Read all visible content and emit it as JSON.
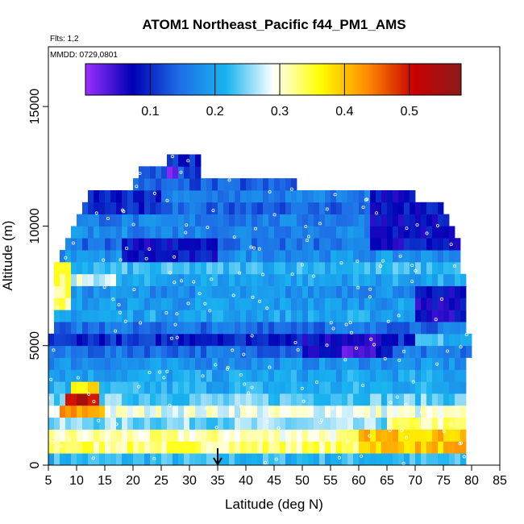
{
  "chart_data": {
    "type": "heatmap",
    "title": "ATOM1 Northeast_Pacific f44_PM1_AMS",
    "flights_note": "Flts: 1,2",
    "dates_note": "MMDD: 0729,0801",
    "xlabel": "Latitude (deg N)",
    "ylabel": "Altitude (m)",
    "xlim": [
      5,
      85
    ],
    "ylim": [
      0,
      17500
    ],
    "x_ticks": [
      "5",
      "10",
      "15",
      "20",
      "25",
      "30",
      "35",
      "40",
      "45",
      "50",
      "55",
      "60",
      "65",
      "70",
      "75",
      "80",
      "85"
    ],
    "y_ticks": [
      "0",
      "5000",
      "10000",
      "15000"
    ],
    "colorbar": {
      "range": [
        0,
        0.58
      ],
      "ticks": [
        "0.1",
        "0.2",
        "0.3",
        "0.4",
        "0.5"
      ],
      "tick_values": [
        0.1,
        0.2,
        0.3,
        0.4,
        0.5
      ],
      "colors": [
        "#9b30ff",
        "#0000b4",
        "#1e6ee6",
        "#19b4f0",
        "#ffffff",
        "#ffff00",
        "#ff8c00",
        "#c80000",
        "#8b1a1a"
      ]
    },
    "marker_latitude": 35,
    "grid": false,
    "legend": "none",
    "profile_bands": [
      {
        "alt": [
          0,
          500
        ],
        "lat": [
          5,
          79
        ],
        "value": 0.22
      },
      {
        "alt": [
          500,
          1000
        ],
        "lat": [
          5,
          79
        ],
        "value": 0.33
      },
      {
        "alt": [
          1000,
          1500
        ],
        "lat": [
          5,
          79
        ],
        "value": 0.31
      },
      {
        "alt": [
          1500,
          2000
        ],
        "lat": [
          5,
          79
        ],
        "value": 0.25
      },
      {
        "alt": [
          2000,
          2500
        ],
        "lat": [
          5,
          79
        ],
        "value": 0.29
      },
      {
        "alt": [
          2500,
          3000
        ],
        "lat": [
          5,
          79
        ],
        "value": 0.24
      },
      {
        "alt": [
          3000,
          3500
        ],
        "lat": [
          5,
          79
        ],
        "value": 0.21
      },
      {
        "alt": [
          3500,
          4000
        ],
        "lat": [
          5,
          79
        ],
        "value": 0.2
      },
      {
        "alt": [
          4000,
          4500
        ],
        "lat": [
          5,
          79
        ],
        "value": 0.18
      },
      {
        "alt": [
          4500,
          5000
        ],
        "lat": [
          5,
          80
        ],
        "value": 0.15
      },
      {
        "alt": [
          5000,
          5500
        ],
        "lat": [
          5,
          80
        ],
        "value": 0.1
      },
      {
        "alt": [
          5500,
          6000
        ],
        "lat": [
          6,
          79
        ],
        "value": 0.15
      },
      {
        "alt": [
          6000,
          6500
        ],
        "lat": [
          6,
          79
        ],
        "value": 0.2
      },
      {
        "alt": [
          6500,
          7000
        ],
        "lat": [
          6,
          79
        ],
        "value": 0.19
      },
      {
        "alt": [
          7000,
          7500
        ],
        "lat": [
          6,
          79
        ],
        "value": 0.18
      },
      {
        "alt": [
          7500,
          8000
        ],
        "lat": [
          6,
          79
        ],
        "value": 0.2
      },
      {
        "alt": [
          8000,
          8500
        ],
        "lat": [
          6,
          78
        ],
        "value": 0.22
      },
      {
        "alt": [
          8500,
          9000
        ],
        "lat": [
          7,
          78
        ],
        "value": 0.18
      },
      {
        "alt": [
          9000,
          9500
        ],
        "lat": [
          8,
          78
        ],
        "value": 0.15
      },
      {
        "alt": [
          9500,
          10000
        ],
        "lat": [
          9,
          77
        ],
        "value": 0.17
      },
      {
        "alt": [
          10000,
          10500
        ],
        "lat": [
          10,
          76
        ],
        "value": 0.16
      },
      {
        "alt": [
          10500,
          11000
        ],
        "lat": [
          11,
          75
        ],
        "value": 0.14
      },
      {
        "alt": [
          11000,
          11500
        ],
        "lat": [
          12,
          70
        ],
        "value": 0.16
      },
      {
        "alt": [
          11500,
          12000
        ],
        "lat": [
          20,
          49
        ],
        "value": 0.13
      },
      {
        "alt": [
          12000,
          12500
        ],
        "lat": [
          21,
          32
        ],
        "value": 0.12
      },
      {
        "alt": [
          12500,
          13000
        ],
        "lat": [
          26,
          32
        ],
        "value": 0.1
      }
    ],
    "features": [
      {
        "alt": [
          2500,
          3000
        ],
        "lat": [
          8,
          14
        ],
        "value": 0.52
      },
      {
        "alt": [
          2000,
          2500
        ],
        "lat": [
          7,
          15
        ],
        "value": 0.42
      },
      {
        "alt": [
          3000,
          3500
        ],
        "lat": [
          9,
          14
        ],
        "value": 0.37
      },
      {
        "alt": [
          500,
          1500
        ],
        "lat": [
          60,
          79
        ],
        "value": 0.4
      },
      {
        "alt": [
          500,
          1000
        ],
        "lat": [
          7,
          12
        ],
        "value": 0.34
      },
      {
        "alt": [
          1500,
          2000
        ],
        "lat": [
          65,
          79
        ],
        "value": 0.32
      },
      {
        "alt": [
          4500,
          5500
        ],
        "lat": [
          50,
          66
        ],
        "value": 0.07
      },
      {
        "alt": [
          4500,
          5000
        ],
        "lat": [
          56,
          63
        ],
        "value": 0.04
      },
      {
        "alt": [
          9000,
          11500
        ],
        "lat": [
          62,
          79
        ],
        "value": 0.08
      },
      {
        "alt": [
          6000,
          7500
        ],
        "lat": [
          70,
          79
        ],
        "value": 0.07
      },
      {
        "alt": [
          10500,
          11500
        ],
        "lat": [
          12,
          25
        ],
        "value": 0.09
      },
      {
        "alt": [
          12000,
          12500
        ],
        "lat": [
          26,
          28
        ],
        "value": 0.03
      },
      {
        "alt": [
          8500,
          9500
        ],
        "lat": [
          18,
          35
        ],
        "value": 0.08
      },
      {
        "alt": [
          6500,
          8500
        ],
        "lat": [
          6,
          9
        ],
        "value": 0.33
      },
      {
        "alt": [
          7500,
          8000
        ],
        "lat": [
          9,
          17
        ],
        "value": 0.28
      },
      {
        "alt": [
          5000,
          5500
        ],
        "lat": [
          70,
          80
        ],
        "value": 0.22
      }
    ]
  }
}
